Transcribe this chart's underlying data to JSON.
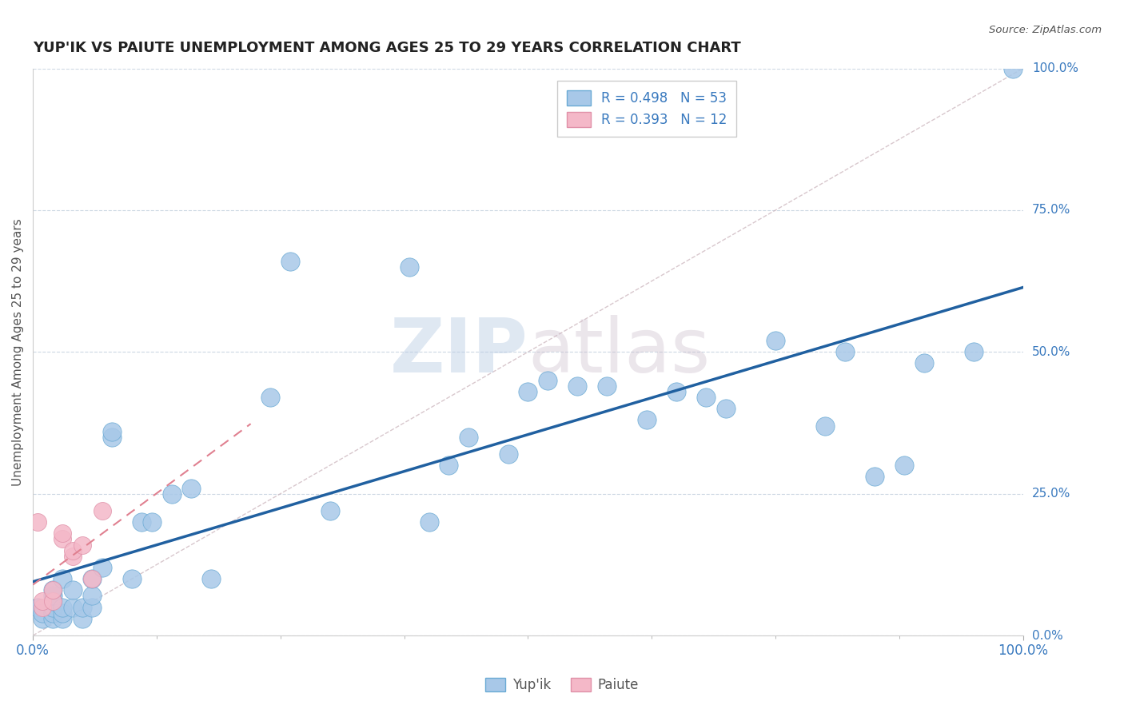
{
  "title": "YUP'IK VS PAIUTE UNEMPLOYMENT AMONG AGES 25 TO 29 YEARS CORRELATION CHART",
  "source": "Source: ZipAtlas.com",
  "ylabel": "Unemployment Among Ages 25 to 29 years",
  "r_yupik": 0.498,
  "n_yupik": 53,
  "r_paiute": 0.393,
  "n_paiute": 12,
  "yupik_color": "#a8c8e8",
  "paiute_color": "#f4b8c8",
  "yupik_edge_color": "#6aaad4",
  "paiute_edge_color": "#e090a8",
  "yupik_line_color": "#2060a0",
  "paiute_line_color": "#e08090",
  "ref_line_color": "#c8b0b8",
  "ytick_labels": [
    "0.0%",
    "25.0%",
    "50.0%",
    "75.0%",
    "100.0%"
  ],
  "ytick_values": [
    0.0,
    0.25,
    0.5,
    0.75,
    1.0
  ],
  "watermark_zip": "ZIP",
  "watermark_atlas": "atlas",
  "background_color": "#ffffff",
  "grid_color": "#c8d4e0",
  "title_fontsize": 13,
  "label_color": "#3a7abf",
  "text_color": "#555555",
  "yupik_x": [
    0.005,
    0.01,
    0.01,
    0.02,
    0.02,
    0.02,
    0.02,
    0.02,
    0.02,
    0.03,
    0.03,
    0.03,
    0.03,
    0.04,
    0.04,
    0.05,
    0.05,
    0.06,
    0.06,
    0.06,
    0.07,
    0.08,
    0.08,
    0.1,
    0.11,
    0.12,
    0.14,
    0.16,
    0.18,
    0.24,
    0.26,
    0.3,
    0.38,
    0.4,
    0.42,
    0.44,
    0.48,
    0.5,
    0.52,
    0.55,
    0.58,
    0.62,
    0.65,
    0.68,
    0.7,
    0.75,
    0.8,
    0.82,
    0.85,
    0.88,
    0.9,
    0.95,
    0.99
  ],
  "yupik_y": [
    0.05,
    0.03,
    0.04,
    0.03,
    0.04,
    0.05,
    0.06,
    0.07,
    0.08,
    0.03,
    0.04,
    0.05,
    0.1,
    0.05,
    0.08,
    0.03,
    0.05,
    0.05,
    0.07,
    0.1,
    0.12,
    0.35,
    0.36,
    0.1,
    0.2,
    0.2,
    0.25,
    0.26,
    0.1,
    0.42,
    0.66,
    0.22,
    0.65,
    0.2,
    0.3,
    0.35,
    0.32,
    0.43,
    0.45,
    0.44,
    0.44,
    0.38,
    0.43,
    0.42,
    0.4,
    0.52,
    0.37,
    0.5,
    0.28,
    0.3,
    0.48,
    0.5,
    1.0
  ],
  "paiute_x": [
    0.005,
    0.01,
    0.01,
    0.02,
    0.02,
    0.03,
    0.03,
    0.04,
    0.04,
    0.05,
    0.06,
    0.07
  ],
  "paiute_y": [
    0.2,
    0.05,
    0.06,
    0.06,
    0.08,
    0.17,
    0.18,
    0.14,
    0.15,
    0.16,
    0.1,
    0.22
  ]
}
